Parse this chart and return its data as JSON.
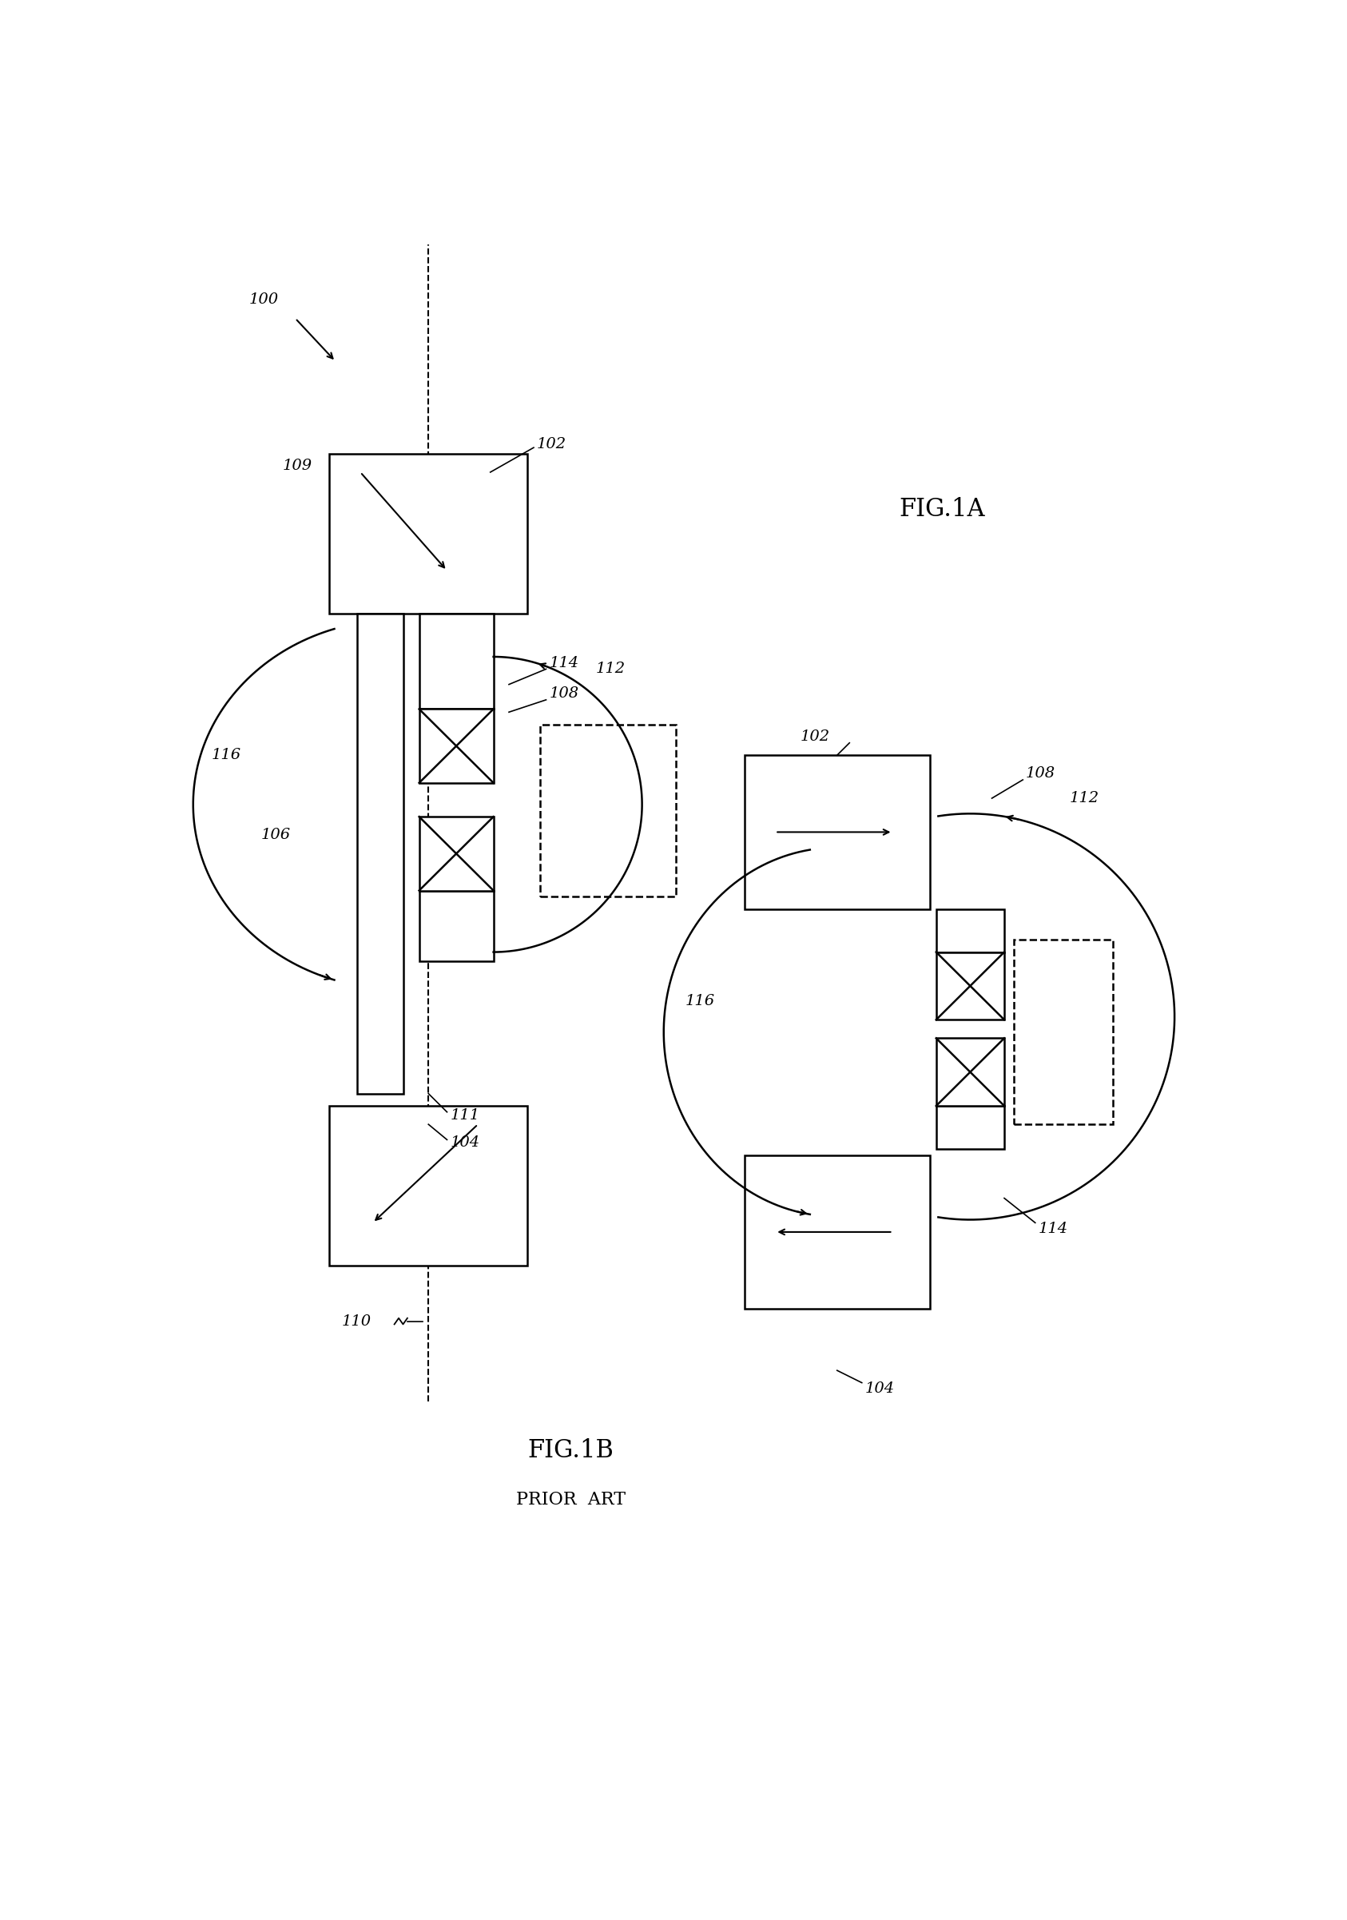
{
  "bg_color": "#ffffff",
  "lw_main": 1.8,
  "lw_thin": 1.4,
  "label_fontsize": 14,
  "fig_label_fontsize": 22,
  "prior_art_fontsize": 16,
  "fig1a_text": "FIG.1A",
  "fig1b_text": "FIG.1B",
  "prior_art_text": "PRIOR  ART"
}
